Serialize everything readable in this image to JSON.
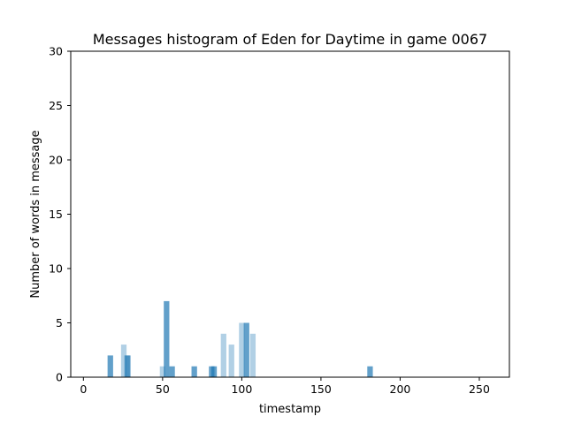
{
  "chart_data": {
    "type": "bar",
    "title": "Messages histogram of Eden for Daytime in game 0067",
    "xlabel": "timestamp",
    "ylabel": "Number of words in message",
    "xlim": [
      -8,
      269
    ],
    "ylim": [
      0,
      30
    ],
    "xticks": [
      0,
      50,
      100,
      150,
      200,
      250
    ],
    "yticks": [
      0,
      5,
      10,
      15,
      20,
      25,
      30
    ],
    "bar_width": 3.5,
    "grid": false,
    "bars": [
      {
        "x": 17,
        "value": 2,
        "shade": "dark"
      },
      {
        "x": 25.5,
        "value": 3,
        "shade": "light"
      },
      {
        "x": 27.5,
        "value": 2,
        "shade": "light"
      },
      {
        "x": 28,
        "value": 2,
        "shade": "dark"
      },
      {
        "x": 50,
        "value": 1,
        "shade": "light"
      },
      {
        "x": 52.5,
        "value": 7,
        "shade": "dark"
      },
      {
        "x": 56,
        "value": 1,
        "shade": "dark"
      },
      {
        "x": 70,
        "value": 1,
        "shade": "dark"
      },
      {
        "x": 81,
        "value": 1,
        "shade": "dark"
      },
      {
        "x": 82.5,
        "value": 1,
        "shade": "dark"
      },
      {
        "x": 88.5,
        "value": 4,
        "shade": "light"
      },
      {
        "x": 93.5,
        "value": 3,
        "shade": "light"
      },
      {
        "x": 100,
        "value": 5,
        "shade": "light"
      },
      {
        "x": 103,
        "value": 5,
        "shade": "dark"
      },
      {
        "x": 107,
        "value": 4,
        "shade": "light"
      },
      {
        "x": 181,
        "value": 1,
        "shade": "dark"
      }
    ],
    "colors": {
      "dark": "#1f77b4",
      "dark_opacity": 0.7,
      "light": "#1f77b4",
      "light_opacity": 0.35,
      "axis": "#000000"
    }
  }
}
